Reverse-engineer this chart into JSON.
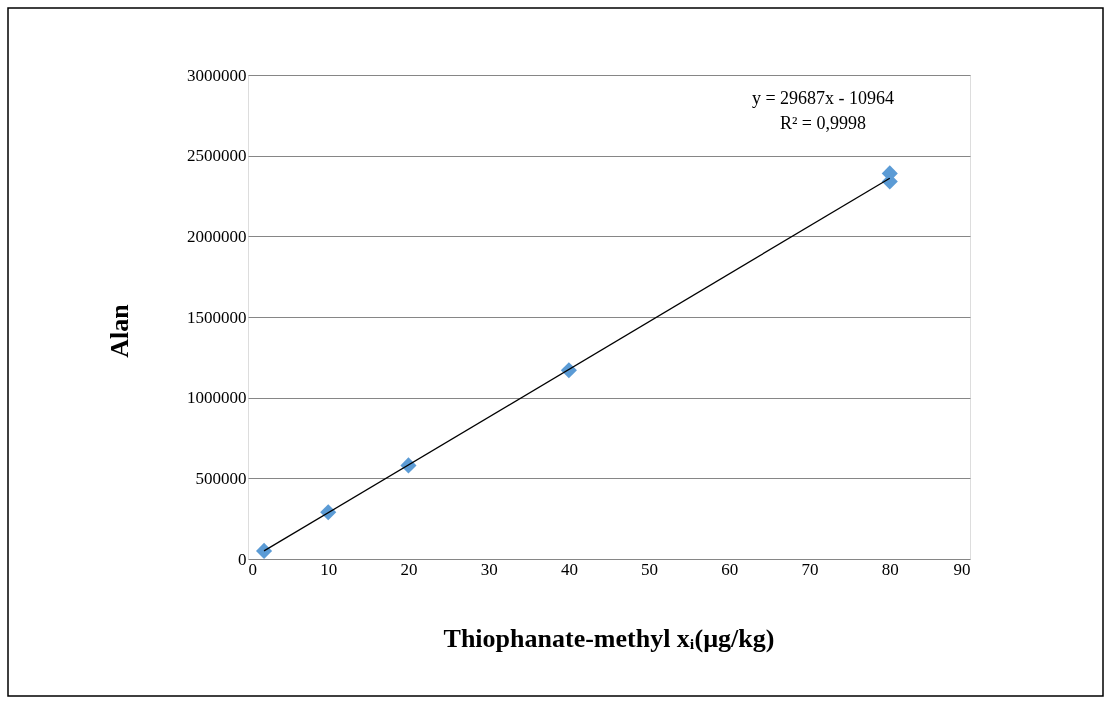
{
  "chart_data": {
    "type": "scatter",
    "xlabel": "Thiophanate-methyl xᵢ(µg/kg)",
    "ylabel": "Alan",
    "annotations": [
      "y = 29687x - 10964",
      "R² = 0,9998"
    ],
    "series": [
      {
        "color": "#5b9bd5",
        "x": [
          2,
          10,
          20,
          40,
          80,
          80
        ],
        "values": [
          50000,
          290000,
          580000,
          1170000,
          2340000,
          2390000
        ]
      },
      {
        "type": "line",
        "color": "#000000",
        "marker": "none",
        "x": [
          2,
          80
        ],
        "values": [
          50000,
          2360000
        ]
      }
    ],
    "xlim": [
      0,
      90
    ],
    "xticks": [
      0,
      10,
      20,
      30,
      40,
      50,
      60,
      70,
      80,
      90
    ],
    "ylim": [
      0,
      3000000
    ],
    "yticks": [
      0,
      500000,
      1000000,
      1500000,
      2000000,
      2500000,
      3000000
    ],
    "grid": "y",
    "marker": "diamond"
  }
}
